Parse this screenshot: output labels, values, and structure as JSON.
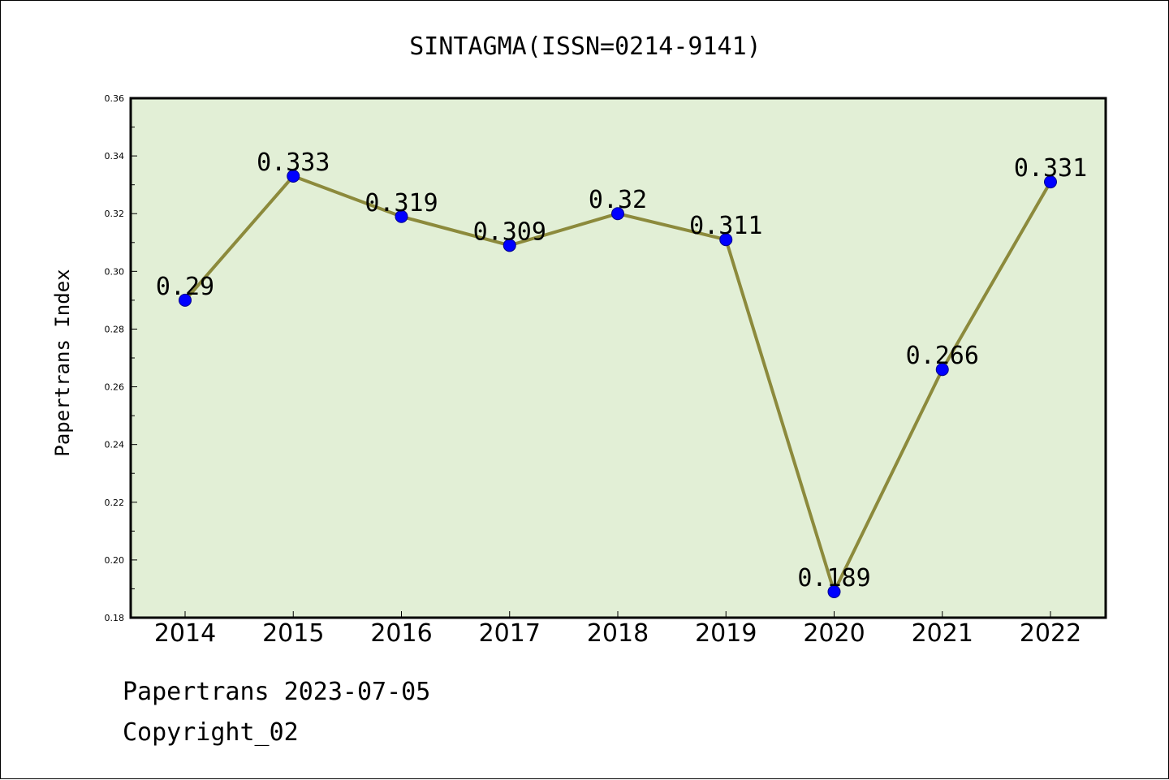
{
  "chart_data": {
    "type": "line",
    "title": "SINTAGMA(ISSN=0214-9141)",
    "xlabel": "",
    "ylabel": "Papertrans Index",
    "categories": [
      "2014",
      "2015",
      "2016",
      "2017",
      "2018",
      "2019",
      "2020",
      "2021",
      "2022"
    ],
    "values": [
      0.29,
      0.333,
      0.319,
      0.309,
      0.32,
      0.311,
      0.189,
      0.266,
      0.331
    ],
    "data_labels": [
      "0.29",
      "0.333",
      "0.319",
      "0.309",
      "0.32",
      "0.311",
      "0.189",
      "0.266",
      "0.331"
    ],
    "ylim": [
      0.18,
      0.36
    ],
    "yticks": [
      "0.18",
      "0.20",
      "0.22",
      "0.24",
      "0.26",
      "0.28",
      "0.30",
      "0.32",
      "0.34",
      "0.36"
    ],
    "grid": false,
    "legend": "none",
    "colors": {
      "plot_background": "#e2efd6",
      "line": "#8c8a3c",
      "marker": "#0000ff",
      "marker_edge": "#00008b"
    }
  },
  "footer": {
    "line1": "Papertrans 2023-07-05",
    "line2": "Copyright_02"
  }
}
